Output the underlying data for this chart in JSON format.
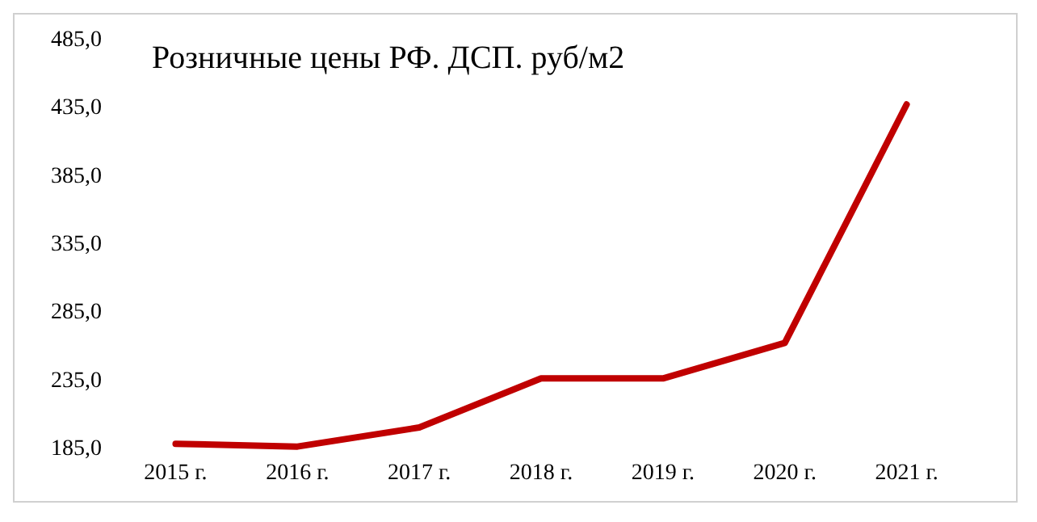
{
  "chart_data": {
    "type": "line",
    "title": "Розничные цены РФ. ДСП. руб/м2",
    "categories": [
      "2015 г.",
      "2016 г.",
      "2017 г.",
      "2018 г.",
      "2019 г.",
      "2020 г.",
      "2021 г."
    ],
    "series": [
      {
        "color": "#c00000",
        "values": [
          189,
          187,
          201,
          237,
          237,
          263,
          438
        ]
      }
    ],
    "ylim": [
      185,
      485
    ],
    "yticks": [
      {
        "value": 185,
        "label": "185,0"
      },
      {
        "value": 235,
        "label": "235,0"
      },
      {
        "value": 285,
        "label": "285,0"
      },
      {
        "value": 335,
        "label": "335,0"
      },
      {
        "value": 385,
        "label": "385,0"
      },
      {
        "value": 435,
        "label": "435,0"
      },
      {
        "value": 485,
        "label": "485,0"
      }
    ],
    "grid": false,
    "marker": "none",
    "line_style": "solid"
  }
}
